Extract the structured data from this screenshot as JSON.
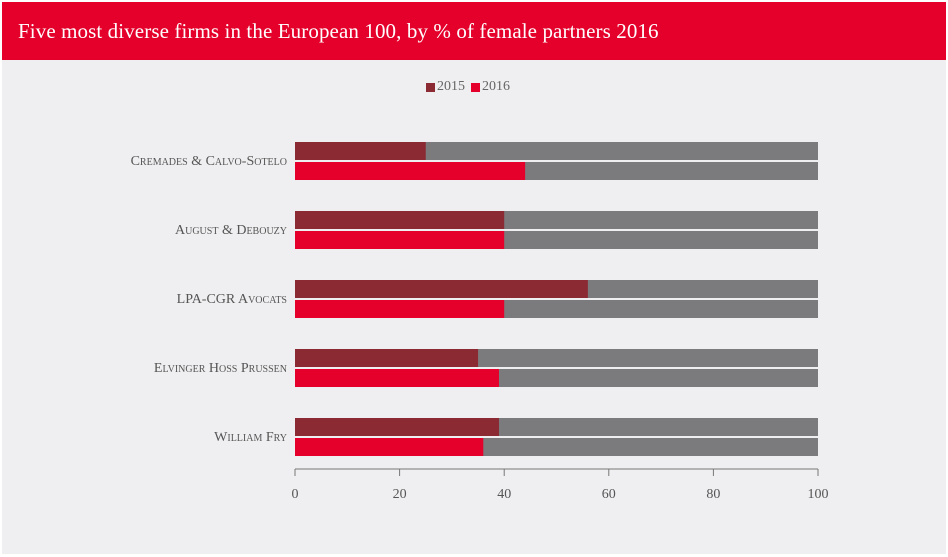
{
  "header": {
    "title": "Five most diverse firms in the European 100, by % of female partners 2016"
  },
  "colors": {
    "header_bg": "#e4002b",
    "series_2015": "#8b2a33",
    "series_2016": "#e4002b",
    "remainder": "#7b7a7d",
    "background": "#efeff1"
  },
  "chart_data": {
    "type": "bar",
    "orientation": "horizontal",
    "title": "Five most diverse firms in the European 100, by % of female partners 2016",
    "categories": [
      "Cremades & Calvo-Sotelo",
      "August & Debouzy",
      "LPA-CGR Avocats",
      "Elvinger Hoss Prussen",
      "William Fry"
    ],
    "series": [
      {
        "name": "2015",
        "values": [
          25,
          40,
          56,
          35,
          39
        ]
      },
      {
        "name": "2016",
        "values": [
          44,
          40,
          40,
          39,
          36
        ]
      }
    ],
    "background_max": 100,
    "xlim": [
      0,
      100
    ],
    "xticks": [
      0,
      20,
      40,
      60,
      80,
      100
    ],
    "xlabel": "",
    "ylabel": "",
    "legend_position": "top-center",
    "grid": false
  }
}
